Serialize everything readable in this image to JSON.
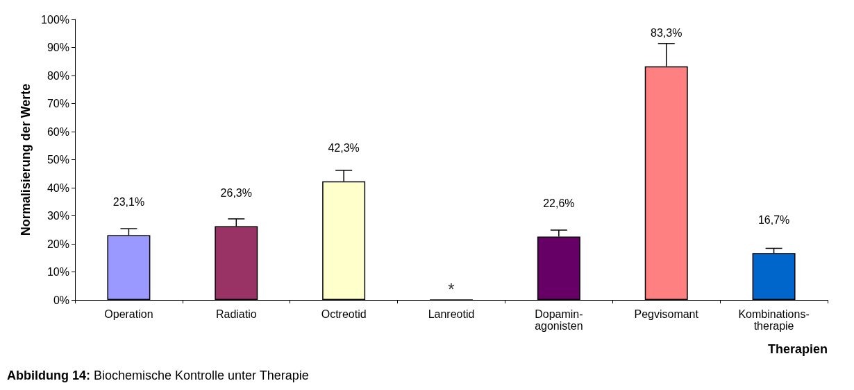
{
  "chart_data": {
    "type": "bar",
    "title": "Abbildung 14: Biochemische Kontrolle unter Therapie",
    "xlabel": "Therapien",
    "ylabel": "Normalisierung der Werte",
    "categories": [
      "Operation",
      "Radiatio",
      "Octreotid",
      "Lanreotid",
      "Dopamin-\nagonisten",
      "Pegvisomant",
      "Kombinations-\ntherapie"
    ],
    "values": [
      23.1,
      26.3,
      42.3,
      0,
      22.6,
      83.3,
      16.7
    ],
    "colors": [
      "#9999ff",
      "#993366",
      "#ffffcc",
      "#000000",
      "#660066",
      "#ff8080",
      "#0066cc"
    ],
    "errors": [
      [
        23.1,
        25.4
      ],
      [
        26.3,
        28.9
      ],
      [
        42.3,
        46.2
      ],
      null,
      [
        22.6,
        24.9
      ],
      [
        83.3,
        91.4
      ],
      [
        16.7,
        18.4
      ]
    ],
    "value_labels": [
      "23,1%",
      "26,3%",
      "42,3%",
      null,
      "22,6%",
      "83,3%",
      "16,7%"
    ],
    "annotations": [
      {
        "text": "*",
        "x": "Lanreotid",
        "y": 0
      }
    ],
    "ylim": [
      0,
      100
    ],
    "yticks": [
      {
        "value": 0,
        "label": "0%"
      },
      {
        "value": 10,
        "label": "10%"
      },
      {
        "value": 20,
        "label": "20%"
      },
      {
        "value": 30,
        "label": "30%"
      },
      {
        "value": 40,
        "label": "40%"
      },
      {
        "value": 50,
        "label": "50%"
      },
      {
        "value": 60,
        "label": "60%"
      },
      {
        "value": 70,
        "label": "70%"
      },
      {
        "value": 80,
        "label": "80%"
      },
      {
        "value": 90,
        "label": "90%"
      },
      {
        "value": 100,
        "label": "100%"
      }
    ],
    "grid": false
  }
}
